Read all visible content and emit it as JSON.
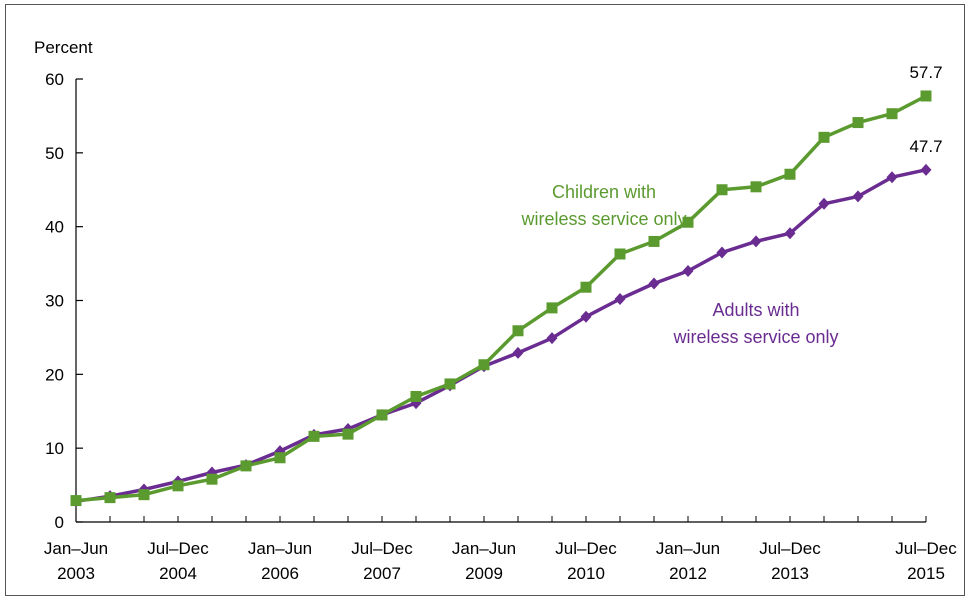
{
  "chart_data": {
    "type": "line",
    "ylabel": "Percent",
    "ylim": [
      0,
      60
    ],
    "yticks": [
      0,
      10,
      20,
      30,
      40,
      50,
      60
    ],
    "x": [
      "Jan–Jun 2003",
      "Jul–Dec 2003",
      "Jan–Jun 2004",
      "Jul–Dec 2004",
      "Jan–Jun 2005",
      "Jul–Dec 2005",
      "Jan–Jun 2006",
      "Jul–Dec 2006",
      "Jan–Jun 2007",
      "Jul–Dec 2007",
      "Jan–Jun 2008",
      "Jul–Dec 2008",
      "Jan–Jun 2009",
      "Jul–Dec 2009",
      "Jan–Jun 2010",
      "Jul–Dec 2010",
      "Jan–Jun 2011",
      "Jul–Dec 2011",
      "Jan–Jun 2012",
      "Jul–Dec 2012",
      "Jan–Jun 2013",
      "Jul–Dec 2013",
      "Jan–Jun 2014",
      "Jul–Dec 2014",
      "Jan–Jun 2015",
      "Jul–Dec 2015"
    ],
    "tick_labels": [
      {
        "index": 0,
        "line1": "Jan–Jun",
        "line2": "2003"
      },
      {
        "index": 3,
        "line1": "Jul–Dec",
        "line2": "2004"
      },
      {
        "index": 6,
        "line1": "Jan–Jun",
        "line2": "2006"
      },
      {
        "index": 9,
        "line1": "Jul–Dec",
        "line2": "2007"
      },
      {
        "index": 12,
        "line1": "Jan–Jun",
        "line2": "2009"
      },
      {
        "index": 15,
        "line1": "Jul–Dec",
        "line2": "2010"
      },
      {
        "index": 18,
        "line1": "Jan–Jun",
        "line2": "2012"
      },
      {
        "index": 21,
        "line1": "Jul–Dec",
        "line2": "2013"
      },
      {
        "index": 25,
        "line1": "Jul–Dec",
        "line2": "2015"
      }
    ],
    "series": [
      {
        "name_lines": [
          "Children with",
          "wireless service only"
        ],
        "color": "#5b9a2f",
        "marker": "square",
        "values": [
          2.9,
          3.3,
          3.7,
          4.9,
          5.8,
          7.6,
          8.7,
          11.6,
          11.9,
          14.5,
          17.0,
          18.7,
          21.3,
          25.9,
          29.0,
          31.8,
          36.3,
          38.0,
          40.6,
          45.0,
          45.4,
          47.1,
          52.1,
          54.1,
          55.3,
          57.7
        ],
        "end_label": "57.7"
      },
      {
        "name_lines": [
          "Adults with",
          "wireless service only"
        ],
        "color": "#6a2c91",
        "marker": "diamond",
        "values": [
          2.8,
          3.5,
          4.4,
          5.5,
          6.7,
          7.7,
          9.6,
          11.8,
          12.6,
          14.5,
          16.1,
          18.5,
          21.1,
          22.9,
          24.9,
          27.8,
          30.2,
          32.3,
          34.0,
          36.5,
          38.0,
          39.1,
          43.1,
          44.1,
          46.7,
          47.7
        ],
        "end_label": "47.7"
      }
    ]
  }
}
